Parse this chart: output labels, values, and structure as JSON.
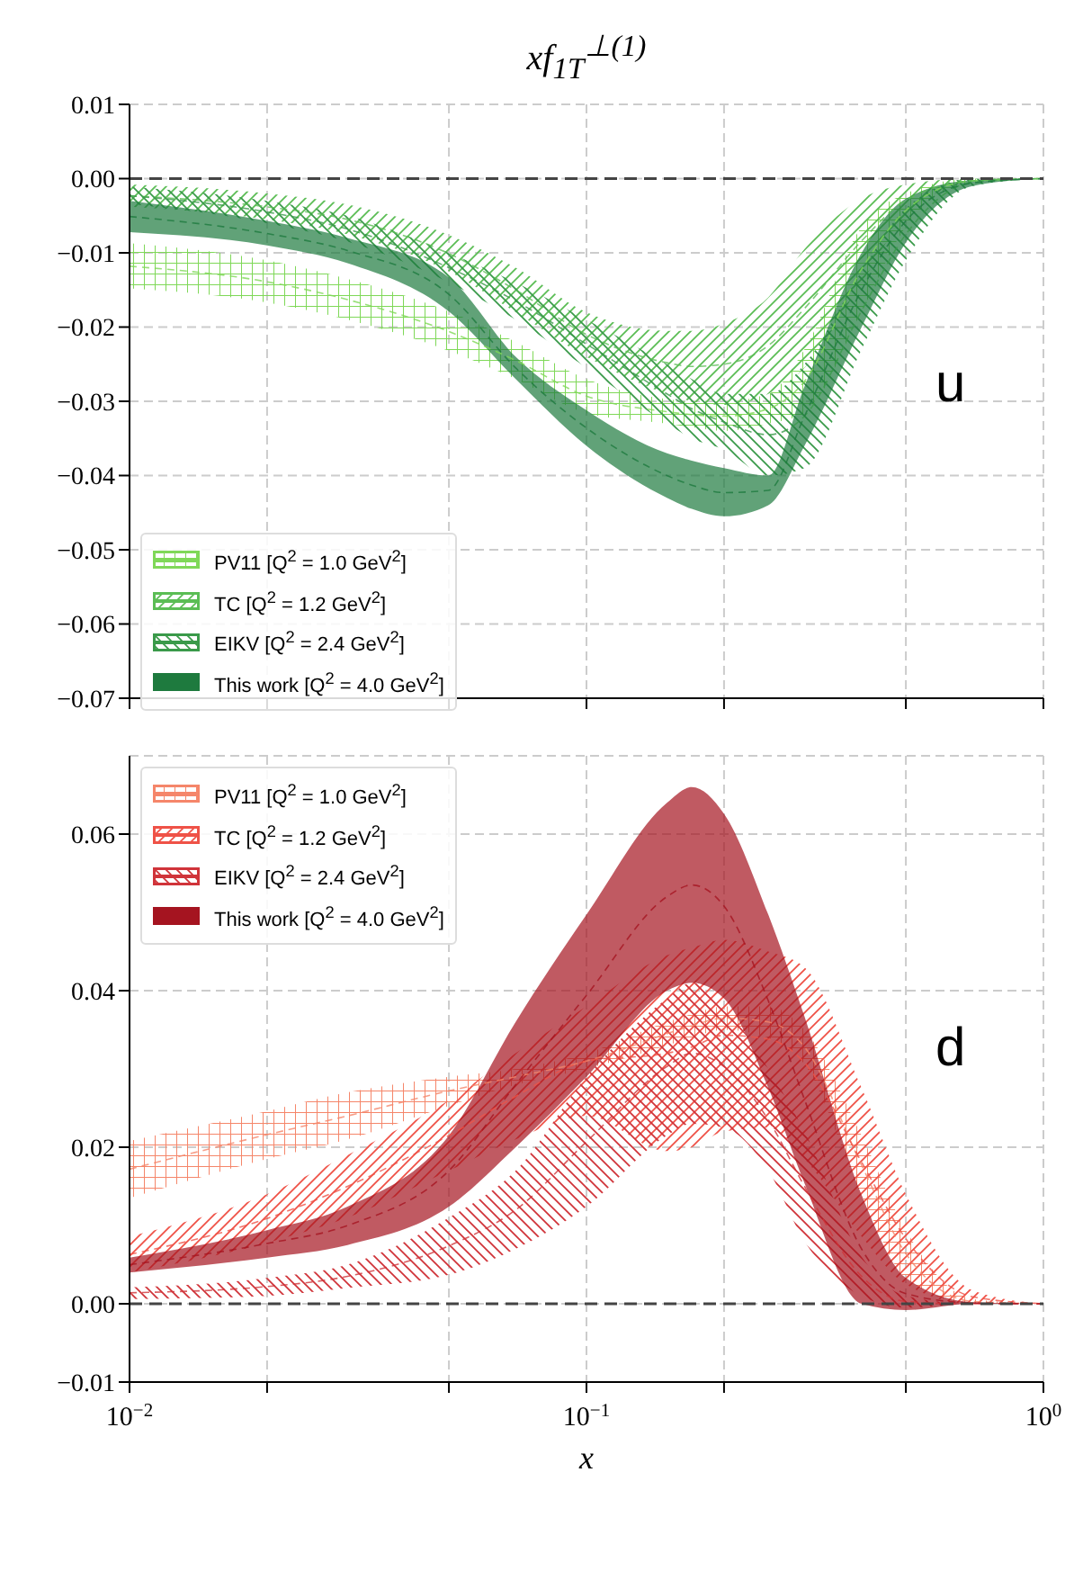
{
  "chart_data": [
    {
      "type": "line",
      "line_style": "dashed",
      "title": "xf$_{1T}$$^{⊥(1)}$",
      "x": [
        0.01,
        0.02,
        0.03,
        0.05,
        0.07,
        0.1,
        0.15,
        0.17,
        0.2,
        0.25,
        0.3,
        0.4,
        0.5,
        0.7,
        1
      ],
      "series": [
        {
          "name": "PV11 [Q$^{2}$ = 1.0 GeV$^{2}$]",
          "color": "#7fd858",
          "values": [
            -0.0118,
            -0.0139,
            -0.0163,
            -0.0206,
            -0.0245,
            -0.0293,
            -0.0314,
            -0.0318,
            -0.032,
            -0.031,
            -0.0273,
            -0.0122,
            -0.0043,
            -0.0003,
            0
          ],
          "lower": [
            -0.0148,
            -0.0167,
            -0.019,
            -0.0232,
            -0.027,
            -0.0316,
            -0.033,
            -0.0335,
            -0.034,
            -0.033,
            -0.0316,
            -0.0179,
            -0.0065,
            -0.0005,
            0
          ],
          "upper": [
            -0.0087,
            -0.011,
            -0.0135,
            -0.0179,
            -0.022,
            -0.027,
            -0.0297,
            -0.03,
            -0.03,
            -0.029,
            -0.023,
            -0.0065,
            -0.002,
            0,
            0
          ]
        },
        {
          "name": "TC [Q$^{2}$ = 1.2 GeV$^{2}$]",
          "color": "#5bbd55",
          "values": [
            -0.0023,
            -0.0038,
            -0.0055,
            -0.0101,
            -0.015,
            -0.021,
            -0.0248,
            -0.0253,
            -0.025,
            -0.0225,
            -0.0175,
            -0.0084,
            -0.0029,
            -0.0003,
            0
          ],
          "lower": [
            -0.0038,
            -0.0055,
            -0.0075,
            -0.0125,
            -0.018,
            -0.024,
            -0.029,
            -0.03,
            -0.0305,
            -0.029,
            -0.0255,
            -0.014,
            -0.005,
            -0.0005,
            0
          ],
          "upper": [
            -0.0008,
            -0.002,
            -0.0035,
            -0.0076,
            -0.012,
            -0.018,
            -0.0205,
            -0.0205,
            -0.0195,
            -0.016,
            -0.0095,
            -0.0027,
            -0.0008,
            0,
            0
          ]
        },
        {
          "name": "EIKV [Q$^{2}$ = 2.4 GeV$^{2}$]",
          "color": "#3a9a4a",
          "values": [
            -0.0023,
            -0.0045,
            -0.0068,
            -0.012,
            -0.0165,
            -0.0223,
            -0.029,
            -0.031,
            -0.0328,
            -0.0345,
            -0.032,
            -0.0178,
            -0.0075,
            -0.0005,
            0
          ],
          "lower": [
            -0.0034,
            -0.006,
            -0.0085,
            -0.014,
            -0.019,
            -0.0255,
            -0.033,
            -0.035,
            -0.0365,
            -0.04,
            -0.039,
            -0.023,
            -0.011,
            -0.001,
            0
          ],
          "upper": [
            -0.0011,
            -0.003,
            -0.005,
            -0.01,
            -0.014,
            -0.019,
            -0.025,
            -0.027,
            -0.029,
            -0.029,
            -0.025,
            -0.0125,
            -0.004,
            0,
            0
          ]
        },
        {
          "name": "This work [Q$^{2}$ = 4.0 GeV$^{2}$]",
          "color": "#1e7a3e",
          "values": [
            -0.0051,
            -0.0074,
            -0.0097,
            -0.0156,
            -0.0255,
            -0.0336,
            -0.04,
            -0.0413,
            -0.0423,
            -0.042,
            -0.032,
            -0.015,
            -0.0057,
            -0.0006,
            0
          ],
          "lower": [
            -0.0072,
            -0.009,
            -0.0114,
            -0.0179,
            -0.027,
            -0.036,
            -0.043,
            -0.0445,
            -0.0455,
            -0.044,
            -0.036,
            -0.02,
            -0.0086,
            -0.001,
            0
          ],
          "upper": [
            -0.003,
            -0.0057,
            -0.008,
            -0.0133,
            -0.024,
            -0.0312,
            -0.037,
            -0.038,
            -0.039,
            -0.04,
            -0.028,
            -0.01,
            -0.0027,
            -0.0002,
            0
          ]
        }
      ],
      "log": "x",
      "xlim": [
        0.01,
        1
      ],
      "xticks": [
        {
          "value": 0.01,
          "label": null
        },
        {
          "value": 0.02,
          "label": null
        },
        {
          "value": 0.05,
          "label": null
        },
        {
          "value": 0.1,
          "label": null
        },
        {
          "value": 0.2,
          "label": null
        },
        {
          "value": 0.5,
          "label": null
        },
        {
          "value": 1,
          "label": null
        }
      ],
      "ylim": [
        -0.07,
        0.01
      ],
      "yticks": [
        {
          "value": -0.07,
          "label": "−0.07"
        },
        {
          "value": -0.06,
          "label": "−0.06"
        },
        {
          "value": -0.05,
          "label": "−0.05"
        },
        {
          "value": -0.04,
          "label": "−0.04"
        },
        {
          "value": -0.03,
          "label": "−0.03"
        },
        {
          "value": -0.02,
          "label": "−0.02"
        },
        {
          "value": -0.01,
          "label": "−0.01"
        },
        {
          "value": 0,
          "label": "0.00"
        },
        {
          "value": 0.01,
          "label": "0.01"
        }
      ],
      "tick_labels": "y",
      "grid": true,
      "legend": "bottom left",
      "ref_lines": [
        {
          "axis": "y",
          "value": 0,
          "label": null,
          "color": "#444444",
          "line_style": "dashed"
        }
      ],
      "annotations": [
        "u"
      ]
    },
    {
      "type": "line",
      "line_style": "dashed",
      "xlabel": "x",
      "x": [
        0.01,
        0.02,
        0.03,
        0.05,
        0.07,
        0.1,
        0.15,
        0.17,
        0.2,
        0.25,
        0.3,
        0.4,
        0.5,
        0.7,
        1
      ],
      "series": [
        {
          "name": "PV11 [Q$^{2}$ = 1.0 GeV$^{2}$]",
          "color": "#f5866a",
          "values": [
            0.0172,
            0.0216,
            0.024,
            0.0272,
            0.029,
            0.031,
            0.0345,
            0.0355,
            0.0365,
            0.036,
            0.0328,
            0.0177,
            0.0064,
            0.0003,
            0
          ],
          "lower": [
            0.0135,
            0.0185,
            0.021,
            0.0253,
            0.028,
            0.03,
            0.033,
            0.034,
            0.035,
            0.034,
            0.0306,
            0.0139,
            0.0033,
            0,
            0
          ],
          "upper": [
            0.0208,
            0.0246,
            0.027,
            0.029,
            0.03,
            0.032,
            0.036,
            0.037,
            0.038,
            0.038,
            0.035,
            0.0215,
            0.0094,
            0.0006,
            0
          ]
        },
        {
          "name": "TC [Q$^{2}$ = 1.2 GeV$^{2}$]",
          "color": "#ef5247",
          "values": [
            0.0063,
            0.0109,
            0.015,
            0.0215,
            0.0265,
            0.031,
            0.032,
            0.0328,
            0.0343,
            0.0338,
            0.0308,
            0.0181,
            0.0083,
            0.0009,
            0
          ],
          "lower": [
            0.004,
            0.0078,
            0.011,
            0.017,
            0.021,
            0.024,
            0.0195,
            0.02,
            0.022,
            0.0225,
            0.0185,
            0.0086,
            0.0025,
            0,
            0
          ],
          "upper": [
            0.0086,
            0.014,
            0.019,
            0.026,
            0.032,
            0.038,
            0.0445,
            0.0455,
            0.0465,
            0.045,
            0.043,
            0.0276,
            0.014,
            0.0017,
            0
          ]
        },
        {
          "name": "EIKV [Q$^{2}$ = 2.4 GeV$^{2}$]",
          "color": "#d0343a",
          "values": [
            0.0014,
            0.0022,
            0.0035,
            0.0074,
            0.012,
            0.0207,
            0.0303,
            0.032,
            0.0303,
            0.0235,
            0.015,
            0.0035,
            0.0003,
            0,
            0
          ],
          "lower": [
            0.0006,
            0.001,
            0.002,
            0.0037,
            0.007,
            0.0124,
            0.0215,
            0.023,
            0.0225,
            0.017,
            0.008,
            0.001,
            -0.0005,
            0,
            0
          ],
          "upper": [
            0.0021,
            0.0033,
            0.005,
            0.011,
            0.017,
            0.029,
            0.039,
            0.041,
            0.038,
            0.03,
            0.022,
            0.006,
            0.001,
            0,
            0
          ]
        },
        {
          "name": "This work [Q$^{2}$ = 4.0 GeV$^{2}$]",
          "color": "#a51420",
          "values": [
            0.005,
            0.0077,
            0.01,
            0.017,
            0.028,
            0.0394,
            0.052,
            0.0535,
            0.0508,
            0.0387,
            0.0261,
            0.007,
            0.0013,
            0.0001,
            0
          ],
          "lower": [
            0.004,
            0.0059,
            0.0075,
            0.0124,
            0.02,
            0.029,
            0.04,
            0.041,
            0.039,
            0.0276,
            0.0154,
            0,
            -0.0008,
            0,
            0
          ],
          "upper": [
            0.0059,
            0.0094,
            0.0124,
            0.0215,
            0.036,
            0.0497,
            0.064,
            0.066,
            0.0626,
            0.0497,
            0.0367,
            0.0139,
            0.0033,
            0.0002,
            0
          ]
        }
      ],
      "log": "x",
      "xlim": [
        0.01,
        1
      ],
      "xticks": [
        {
          "value": 0.01,
          "label": "10$^{−2}$"
        },
        {
          "value": 0.02,
          "label": null
        },
        {
          "value": 0.05,
          "label": null
        },
        {
          "value": 0.1,
          "label": "10$^{−1}$"
        },
        {
          "value": 0.2,
          "label": null
        },
        {
          "value": 0.5,
          "label": null
        },
        {
          "value": 1,
          "label": "10$^{0}$"
        }
      ],
      "ylim": [
        -0.01,
        0.07
      ],
      "yticks": [
        {
          "value": -0.01,
          "label": "−0.01"
        },
        {
          "value": 0,
          "label": "0.00"
        },
        {
          "value": 0.02,
          "label": "0.02"
        },
        {
          "value": 0.04,
          "label": "0.04"
        },
        {
          "value": 0.06,
          "label": "0.06"
        }
      ],
      "grid": true,
      "legend": "top left",
      "ref_lines": [
        {
          "axis": "y",
          "value": 0,
          "label": null,
          "color": "#444444",
          "line_style": "dashed"
        }
      ],
      "annotations": [
        "d"
      ]
    }
  ]
}
